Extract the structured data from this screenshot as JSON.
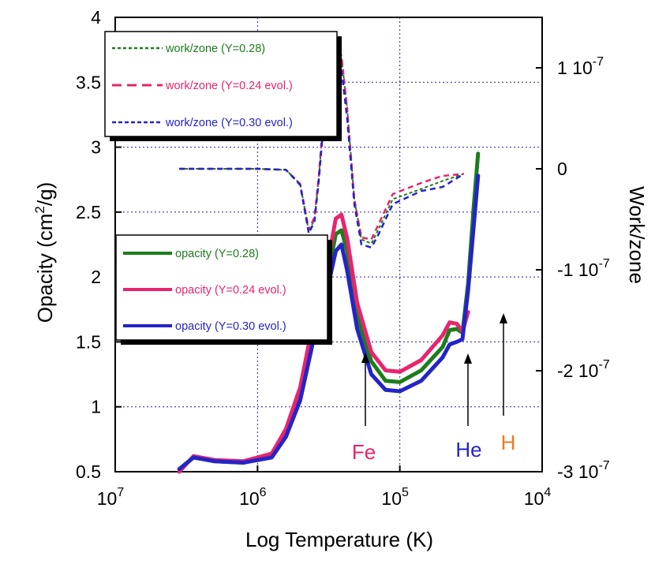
{
  "chart_data": {
    "type": "line",
    "xlabel": "Log Temperature (K)",
    "ylabel_left": "Opacity (cm²/g)",
    "ylabel_right": "Work/zone",
    "x_scale": "log, decreasing left to right",
    "xlim_log10": [
      7,
      4
    ],
    "x_ticks": [
      {
        "base": "10",
        "exp": "7"
      },
      {
        "base": "10",
        "exp": "6"
      },
      {
        "base": "10",
        "exp": "5"
      },
      {
        "base": "10",
        "exp": "4"
      }
    ],
    "ylim_left": [
      0.5,
      4
    ],
    "yticks_left": [
      "0.5",
      "1",
      "1.5",
      "2",
      "2.5",
      "3",
      "3.5",
      "4"
    ],
    "ylim_right": [
      -3e-07,
      1.5e-07
    ],
    "yticks_right": [
      {
        "value": 1e-07,
        "mant": "1 10",
        "exp": "-7"
      },
      {
        "value": 0,
        "mant": "0",
        "exp": ""
      },
      {
        "value": -1e-07,
        "mant": "-1 10",
        "exp": "-7"
      },
      {
        "value": -2e-07,
        "mant": "-2 10",
        "exp": "-7"
      },
      {
        "value": -3e-07,
        "mant": "-3 10",
        "exp": "-7"
      }
    ],
    "grid": "dotted",
    "series": [
      {
        "name": "opacity (Y=0.28)",
        "axis": "left",
        "style": "solid",
        "color": "#1c7d1c",
        "points": [
          [
            6.55,
            0.52
          ],
          [
            6.45,
            0.61
          ],
          [
            6.3,
            0.58
          ],
          [
            6.1,
            0.57
          ],
          [
            5.9,
            0.62
          ],
          [
            5.8,
            0.8
          ],
          [
            5.7,
            1.1
          ],
          [
            5.6,
            1.6
          ],
          [
            5.5,
            2.05
          ],
          [
            5.45,
            2.33
          ],
          [
            5.41,
            2.36
          ],
          [
            5.37,
            2.2
          ],
          [
            5.3,
            1.7
          ],
          [
            5.2,
            1.35
          ],
          [
            5.1,
            1.2
          ],
          [
            5.0,
            1.19
          ],
          [
            4.85,
            1.28
          ],
          [
            4.7,
            1.46
          ],
          [
            4.65,
            1.59
          ],
          [
            4.6,
            1.6
          ],
          [
            4.56,
            1.57
          ],
          [
            4.52,
            1.95
          ],
          [
            4.48,
            2.55
          ],
          [
            4.45,
            2.95
          ]
        ]
      },
      {
        "name": "opacity (Y=0.24 evol.)",
        "axis": "left",
        "style": "solid",
        "color": "#e8246e",
        "points": [
          [
            6.55,
            0.5
          ],
          [
            6.45,
            0.62
          ],
          [
            6.3,
            0.59
          ],
          [
            6.1,
            0.58
          ],
          [
            5.9,
            0.64
          ],
          [
            5.8,
            0.83
          ],
          [
            5.7,
            1.15
          ],
          [
            5.6,
            1.7
          ],
          [
            5.5,
            2.15
          ],
          [
            5.45,
            2.45
          ],
          [
            5.41,
            2.48
          ],
          [
            5.37,
            2.3
          ],
          [
            5.3,
            1.8
          ],
          [
            5.2,
            1.42
          ],
          [
            5.1,
            1.28
          ],
          [
            5.0,
            1.27
          ],
          [
            4.85,
            1.36
          ],
          [
            4.7,
            1.55
          ],
          [
            4.65,
            1.65
          ],
          [
            4.6,
            1.64
          ],
          [
            4.56,
            1.58
          ],
          [
            4.52,
            1.73
          ]
        ]
      },
      {
        "name": "opacity (Y=0.30 evol.)",
        "axis": "left",
        "style": "solid",
        "color": "#2424c8",
        "points": [
          [
            6.55,
            0.52
          ],
          [
            6.45,
            0.61
          ],
          [
            6.3,
            0.58
          ],
          [
            6.1,
            0.57
          ],
          [
            5.9,
            0.61
          ],
          [
            5.8,
            0.77
          ],
          [
            5.7,
            1.05
          ],
          [
            5.6,
            1.55
          ],
          [
            5.5,
            1.95
          ],
          [
            5.45,
            2.2
          ],
          [
            5.41,
            2.25
          ],
          [
            5.37,
            2.05
          ],
          [
            5.3,
            1.6
          ],
          [
            5.2,
            1.25
          ],
          [
            5.1,
            1.13
          ],
          [
            5.0,
            1.12
          ],
          [
            4.85,
            1.2
          ],
          [
            4.7,
            1.38
          ],
          [
            4.65,
            1.48
          ],
          [
            4.6,
            1.5
          ],
          [
            4.56,
            1.52
          ],
          [
            4.52,
            1.9
          ],
          [
            4.48,
            2.4
          ],
          [
            4.45,
            2.78
          ]
        ]
      },
      {
        "name": "work/zone (Y=0.28)",
        "axis": "right",
        "style": "dotted",
        "color": "#1c7d1c",
        "points": [
          [
            6.55,
            0
          ],
          [
            6.0,
            0
          ],
          [
            5.8,
            -1e-09
          ],
          [
            5.7,
            -1.5e-08
          ],
          [
            5.64,
            -6.2e-08
          ],
          [
            5.6,
            -5e-08
          ],
          [
            5.57,
            -1e-08
          ],
          [
            5.53,
            6e-08
          ],
          [
            5.47,
            1.05e-07
          ],
          [
            5.44,
            1.18e-07
          ],
          [
            5.41,
            1.1e-07
          ],
          [
            5.37,
            6e-08
          ],
          [
            5.32,
            -3e-08
          ],
          [
            5.27,
            -7e-08
          ],
          [
            5.2,
            -7.4e-08
          ],
          [
            5.15,
            -6e-08
          ],
          [
            5.05,
            -3e-08
          ],
          [
            4.85,
            -2e-08
          ],
          [
            4.7,
            -1.2e-08
          ],
          [
            4.55,
            -5e-09
          ]
        ]
      },
      {
        "name": "work/zone (Y=0.24 evol.)",
        "axis": "right",
        "style": "dashed",
        "color": "#e8246e",
        "points": [
          [
            6.55,
            0
          ],
          [
            6.0,
            0
          ],
          [
            5.8,
            -1e-09
          ],
          [
            5.7,
            -1.5e-08
          ],
          [
            5.64,
            -6e-08
          ],
          [
            5.6,
            -4.8e-08
          ],
          [
            5.57,
            -8e-09
          ],
          [
            5.53,
            6.5e-08
          ],
          [
            5.47,
            1.1e-07
          ],
          [
            5.44,
            1.24e-07
          ],
          [
            5.41,
            1.12e-07
          ],
          [
            5.37,
            6e-08
          ],
          [
            5.32,
            -3e-08
          ],
          [
            5.27,
            -6.8e-08
          ],
          [
            5.2,
            -7e-08
          ],
          [
            5.15,
            -5.5e-08
          ],
          [
            5.05,
            -2.5e-08
          ],
          [
            4.85,
            -1.4e-08
          ],
          [
            4.7,
            -7e-09
          ],
          [
            4.55,
            -5e-09
          ]
        ]
      },
      {
        "name": "work/zone (Y=0.30 evol.)",
        "axis": "right",
        "style": "dashed",
        "color": "#2424c8",
        "points": [
          [
            6.55,
            0
          ],
          [
            6.0,
            0
          ],
          [
            5.8,
            -1e-09
          ],
          [
            5.7,
            -1.6e-08
          ],
          [
            5.64,
            -6.4e-08
          ],
          [
            5.6,
            -5.2e-08
          ],
          [
            5.57,
            -1.2e-08
          ],
          [
            5.53,
            5.5e-08
          ],
          [
            5.47,
            9.8e-08
          ],
          [
            5.44,
            1.05e-07
          ],
          [
            5.41,
            9.8e-08
          ],
          [
            5.37,
            5e-08
          ],
          [
            5.32,
            -3.5e-08
          ],
          [
            5.27,
            -7.5e-08
          ],
          [
            5.2,
            -7.8e-08
          ],
          [
            5.15,
            -6.5e-08
          ],
          [
            5.05,
            -3.5e-08
          ],
          [
            4.85,
            -2.2e-08
          ],
          [
            4.7,
            -1.8e-08
          ],
          [
            4.55,
            -5e-09
          ]
        ]
      }
    ],
    "legends": [
      {
        "position": "top-left",
        "entries": [
          {
            "label": "work/zone (Y=0.28)",
            "color": "#1c7d1c",
            "style": "dotted"
          },
          {
            "label": "work/zone (Y=0.24 evol.)",
            "color": "#e8246e",
            "style": "dashed"
          },
          {
            "label": "work/zone (Y=0.30 evol.)",
            "color": "#2424c8",
            "style": "dashed"
          }
        ]
      },
      {
        "position": "middle-left",
        "entries": [
          {
            "label": "opacity (Y=0.28)",
            "color": "#1c7d1c",
            "style": "solid"
          },
          {
            "label": "opacity (Y=0.24 evol.)",
            "color": "#e8246e",
            "style": "solid"
          },
          {
            "label": "opacity (Y=0.30 evol.)",
            "color": "#2424c8",
            "style": "solid"
          }
        ]
      }
    ],
    "annotations": [
      {
        "text": "Fe",
        "color": "#e8246e",
        "x_log10": 5.4
      },
      {
        "text": "He",
        "color": "#2424c8",
        "x_log10": 4.58
      },
      {
        "text": "H",
        "color": "#f07820",
        "x_log10": 4.43
      }
    ]
  }
}
